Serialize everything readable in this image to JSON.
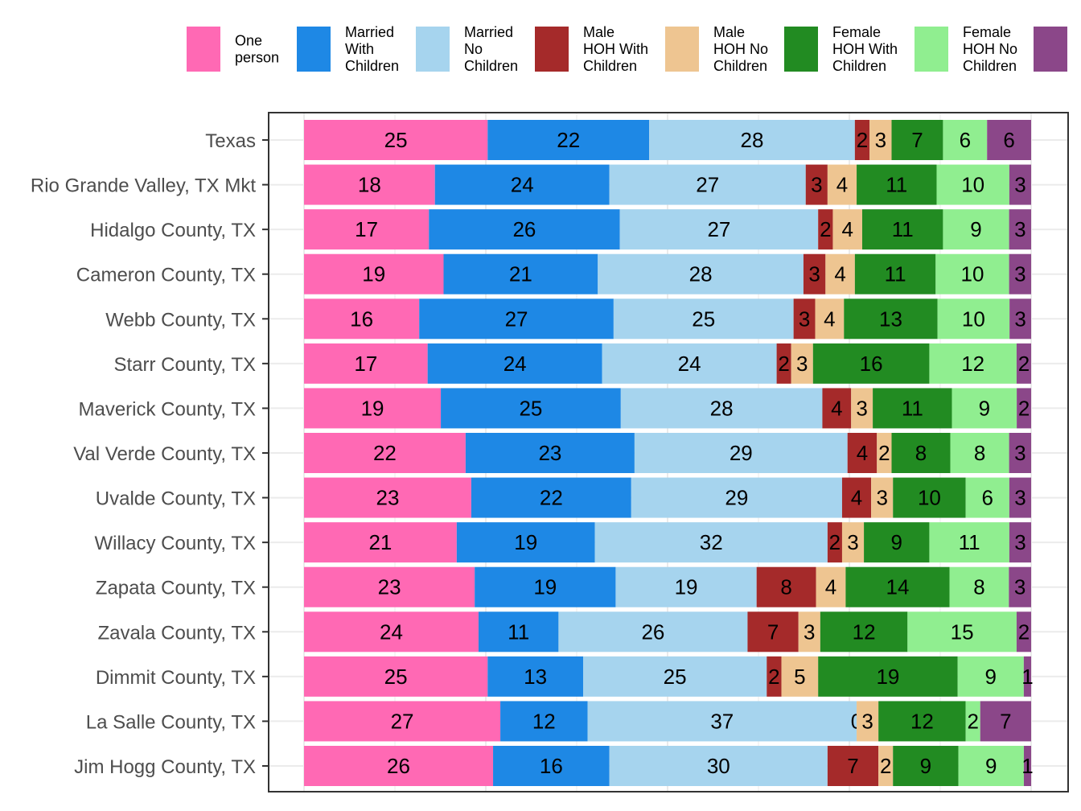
{
  "chart_data": {
    "type": "bar",
    "orientation": "horizontal",
    "stacked": true,
    "normalized": true,
    "title": "",
    "xlabel": "",
    "ylabel": "",
    "grid": true,
    "legend_position": "top",
    "categories": [
      "Texas",
      "Rio Grande Valley, TX Mkt",
      "Hidalgo County, TX",
      "Cameron County, TX",
      "Webb County, TX",
      "Starr County, TX",
      "Maverick County, TX",
      "Val Verde County, TX",
      "Uvalde County, TX",
      "Willacy County, TX",
      "Zapata County, TX",
      "Zavala County, TX",
      "Dimmit County, TX",
      "La Salle County, TX",
      "Jim Hogg County, TX"
    ],
    "series": [
      {
        "name": "One person",
        "color": "#FF69B4",
        "values": [
          25,
          18,
          17,
          19,
          16,
          17,
          19,
          22,
          23,
          21,
          23,
          24,
          25,
          27,
          26
        ]
      },
      {
        "name": "Married With Children",
        "color": "#1E88E5",
        "values": [
          22,
          24,
          26,
          21,
          27,
          24,
          25,
          23,
          22,
          19,
          19,
          11,
          13,
          12,
          16
        ]
      },
      {
        "name": "Married No Children",
        "color": "#A6D4EE",
        "values": [
          28,
          27,
          27,
          28,
          25,
          24,
          28,
          29,
          29,
          32,
          19,
          26,
          25,
          37,
          30
        ]
      },
      {
        "name": "Male HOH With Children",
        "color": "#A52A2A",
        "values": [
          2,
          3,
          2,
          3,
          3,
          2,
          4,
          4,
          4,
          2,
          8,
          7,
          2,
          0,
          7
        ]
      },
      {
        "name": "Male HOH No Children",
        "color": "#EEC591",
        "values": [
          3,
          4,
          4,
          4,
          4,
          3,
          3,
          2,
          3,
          3,
          4,
          3,
          5,
          3,
          2
        ]
      },
      {
        "name": "Female HOH With Children",
        "color": "#228B22",
        "values": [
          7,
          11,
          11,
          11,
          13,
          16,
          11,
          8,
          10,
          9,
          14,
          12,
          19,
          12,
          9
        ]
      },
      {
        "name": "Female HOH No Children",
        "color": "#90EE90",
        "values": [
          6,
          10,
          9,
          10,
          10,
          12,
          9,
          8,
          6,
          11,
          8,
          15,
          9,
          2,
          9
        ]
      },
      {
        "name": "",
        "color": "#8B4789",
        "values": [
          6,
          3,
          3,
          3,
          3,
          2,
          2,
          3,
          3,
          3,
          3,
          2,
          1,
          7,
          1
        ]
      }
    ]
  }
}
